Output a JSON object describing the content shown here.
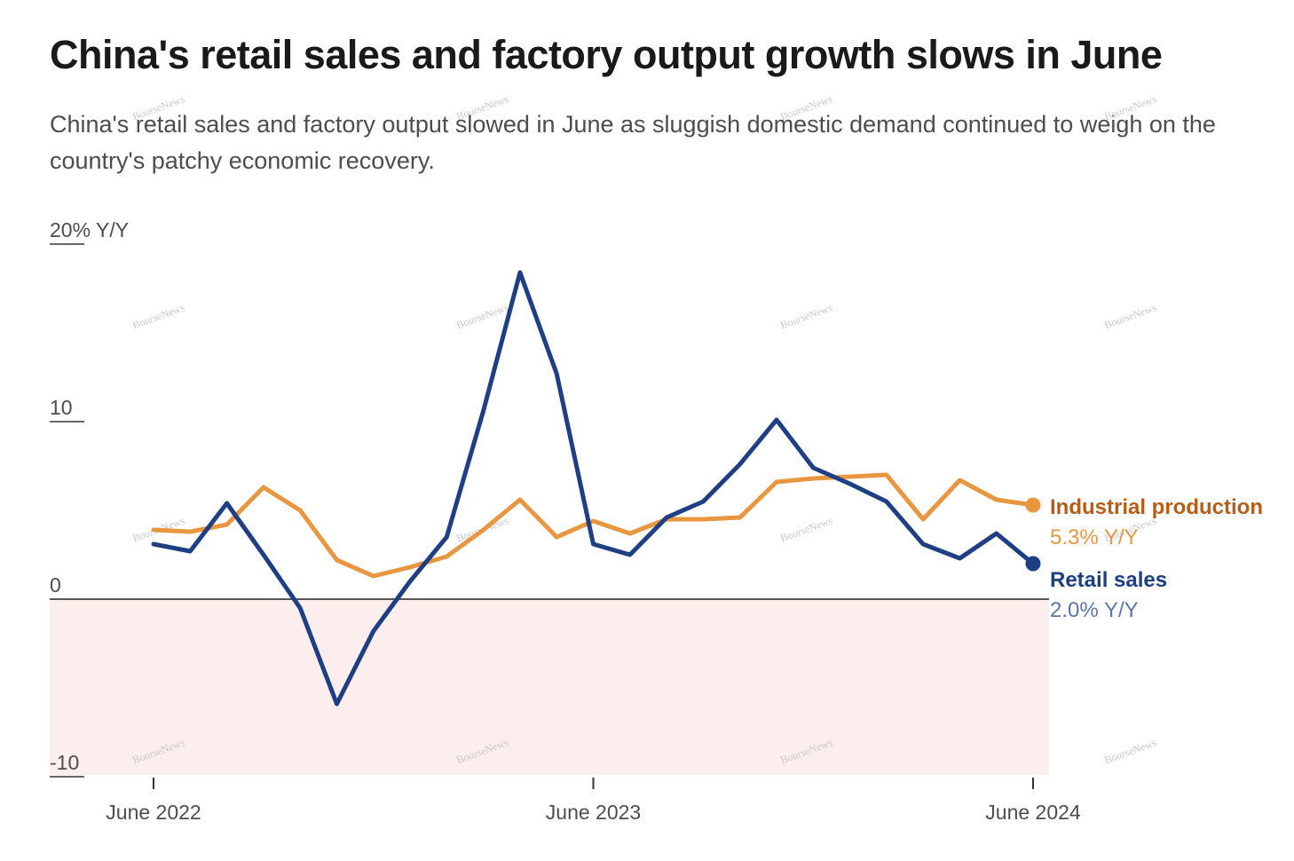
{
  "header": {
    "title": "China's retail sales and factory output growth slows in June",
    "subtitle_line1": "China's retail sales and factory output slowed in June as sluggish domestic demand continued to weigh on the",
    "subtitle_line2": "country's patchy economic recovery."
  },
  "watermark": "BourseNews",
  "colors": {
    "industrial": "#e8963f",
    "industrial_label": "#b85c16",
    "retail": "#1f3f84",
    "retail_value": "#5a76ae",
    "negative_band": "#fbeeec",
    "axis": "#333333",
    "text": "#4d4d4d"
  },
  "chart_data": {
    "type": "line",
    "title": "China's retail sales and factory output growth slows in June",
    "ylabel_unit": "% Y/Y",
    "ylim": [
      -10,
      20
    ],
    "y_ticks": [
      {
        "value": 20,
        "label": "20% Y/Y"
      },
      {
        "value": 10,
        "label": "10"
      },
      {
        "value": 0,
        "label": "0"
      },
      {
        "value": -10,
        "label": "-10"
      }
    ],
    "x_ticks": [
      {
        "index": 0,
        "label": "June 2022"
      },
      {
        "index": 12,
        "label": "June 2023"
      },
      {
        "index": 24,
        "label": "June 2024"
      }
    ],
    "x": [
      "Jun 2022",
      "Jul 2022",
      "Aug 2022",
      "Sep 2022",
      "Oct 2022",
      "Nov 2022",
      "Dec 2022",
      "Jan 2023",
      "Feb 2023",
      "Mar 2023",
      "Apr 2023",
      "May 2023",
      "Jun 2023",
      "Jul 2023",
      "Aug 2023",
      "Sep 2023",
      "Oct 2023",
      "Nov 2023",
      "Dec 2023",
      "Jan 2024",
      "Feb 2024",
      "Mar 2024",
      "Apr 2024",
      "May 2024",
      "Jun 2024"
    ],
    "negative_shading": true,
    "series": [
      {
        "name": "Industrial production",
        "end_label": "Industrial production",
        "end_value_label": "5.3% Y/Y",
        "values": [
          3.9,
          3.8,
          4.2,
          6.3,
          5.0,
          2.2,
          1.3,
          1.8,
          2.4,
          3.9,
          5.6,
          3.5,
          4.4,
          3.7,
          4.5,
          4.5,
          4.6,
          6.6,
          6.8,
          6.9,
          7.0,
          4.5,
          6.7,
          5.6,
          5.3
        ]
      },
      {
        "name": "Retail sales",
        "end_label": "Retail sales",
        "end_value_label": "2.0% Y/Y",
        "values": [
          3.1,
          2.7,
          5.4,
          2.5,
          -0.5,
          -5.9,
          -1.8,
          1.0,
          3.5,
          10.6,
          18.4,
          12.7,
          3.1,
          2.5,
          4.6,
          5.5,
          7.6,
          10.1,
          7.4,
          6.5,
          5.5,
          3.1,
          2.3,
          3.7,
          2.0
        ]
      }
    ]
  }
}
